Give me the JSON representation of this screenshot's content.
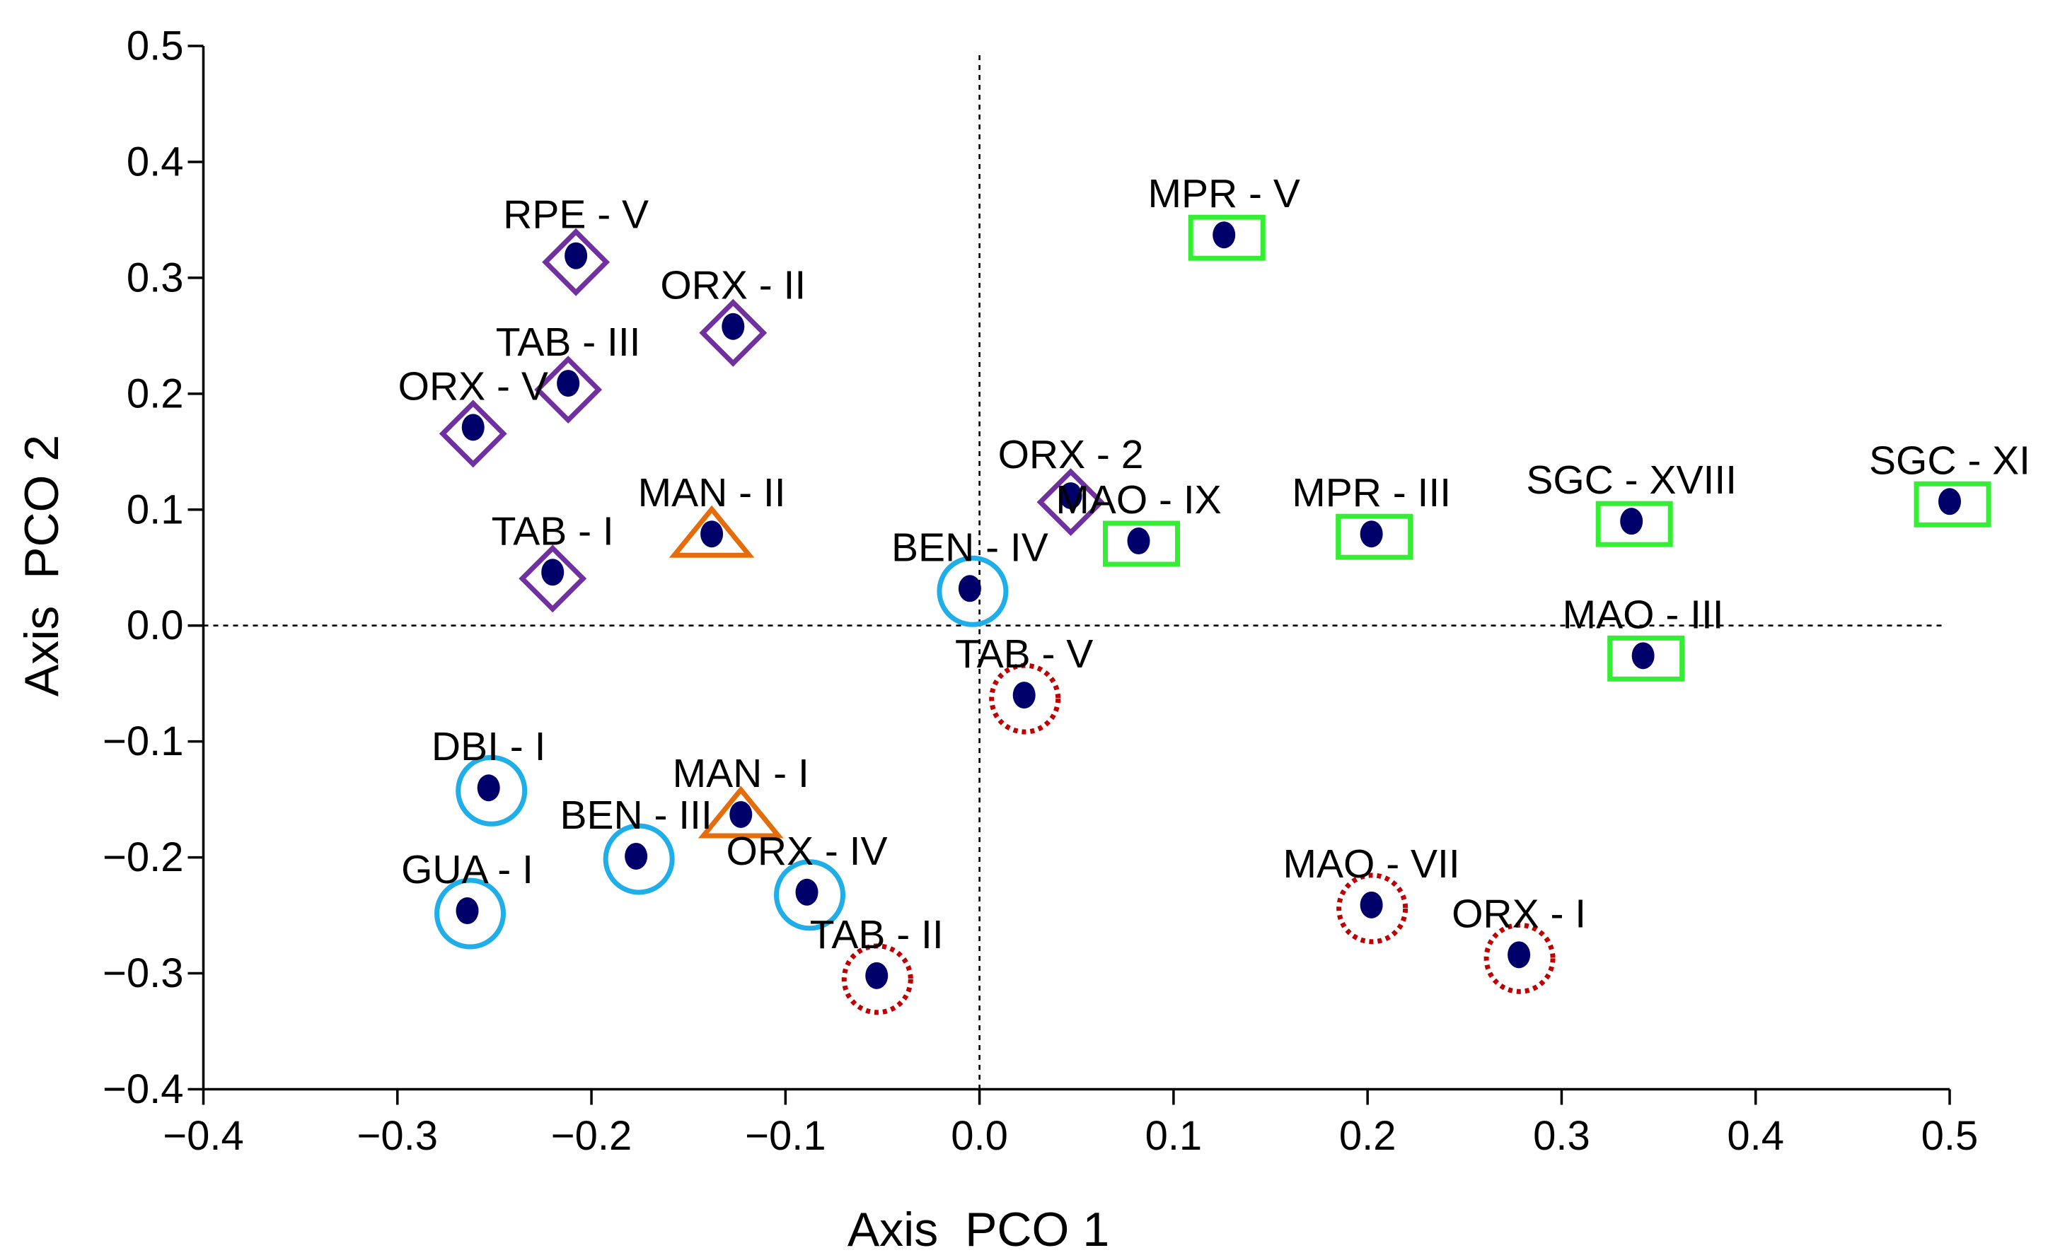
{
  "chart_data": {
    "type": "scatter",
    "xlabel": "Axis  PCO 1",
    "ylabel": "Axis  PCO 2",
    "xlim": [
      -0.4,
      0.5
    ],
    "ylim": [
      -0.4,
      0.5
    ],
    "grid": false,
    "xticks": [
      -0.4,
      -0.3,
      -0.2,
      -0.1,
      0.0,
      0.1,
      0.2,
      0.3,
      0.4,
      0.5
    ],
    "xtick_labels": [
      "−0.4",
      "−0.3",
      "−0.2",
      "−0.1",
      "0.0",
      "0.1",
      "0.2",
      "0.3",
      "0.4",
      "0.5"
    ],
    "yticks": [
      0.5,
      0.4,
      0.3,
      0.2,
      0.1,
      0.0,
      -0.1,
      -0.2,
      -0.3,
      -0.4
    ],
    "ytick_labels": [
      "0.5",
      "0.4",
      "0.3",
      "0.2",
      "0.1",
      "0.0",
      "−0.1",
      "−0.2",
      "−0.3",
      "−0.4"
    ],
    "reference_lines": {
      "x": 0,
      "y": 0
    },
    "point_color": "#00006B",
    "marker_styles": {
      "diamond": {
        "color": "#7030A0"
      },
      "triangle": {
        "color": "#E46C0A"
      },
      "circle": {
        "color": "#1FAEE8"
      },
      "square": {
        "color": "#33EE33"
      },
      "dotted-circle": {
        "color": "#C00000"
      }
    },
    "points": [
      {
        "label": "RPE - V",
        "x": -0.208,
        "y": 0.319,
        "marker": "diamond"
      },
      {
        "label": "ORX - II",
        "x": -0.127,
        "y": 0.258,
        "marker": "diamond"
      },
      {
        "label": "TAB - III",
        "x": -0.212,
        "y": 0.209,
        "marker": "diamond"
      },
      {
        "label": "ORX - V",
        "x": -0.261,
        "y": 0.171,
        "marker": "diamond"
      },
      {
        "label": "TAB - I",
        "x": -0.22,
        "y": 0.046,
        "marker": "diamond"
      },
      {
        "label": "ORX - 2",
        "x": 0.047,
        "y": 0.112,
        "marker": "diamond"
      },
      {
        "label": "MAN - II",
        "x": -0.138,
        "y": 0.079,
        "marker": "triangle"
      },
      {
        "label": "MAN - I",
        "x": -0.123,
        "y": -0.163,
        "marker": "triangle"
      },
      {
        "label": "BEN - IV",
        "x": -0.005,
        "y": 0.032,
        "marker": "circle"
      },
      {
        "label": "DBI - I",
        "x": -0.253,
        "y": -0.14,
        "marker": "circle"
      },
      {
        "label": "BEN - III",
        "x": -0.177,
        "y": -0.199,
        "marker": "circle"
      },
      {
        "label": "GUA - I",
        "x": -0.264,
        "y": -0.246,
        "marker": "circle"
      },
      {
        "label": "ORX - IV",
        "x": -0.089,
        "y": -0.23,
        "marker": "circle"
      },
      {
        "label": "MPR - V",
        "x": 0.126,
        "y": 0.337,
        "marker": "square"
      },
      {
        "label": "MAO - IX",
        "x": 0.082,
        "y": 0.073,
        "marker": "square"
      },
      {
        "label": "MPR - III",
        "x": 0.202,
        "y": 0.079,
        "marker": "square"
      },
      {
        "label": "SGC - XVIII",
        "x": 0.336,
        "y": 0.09,
        "marker": "square"
      },
      {
        "label": "SGC - XI",
        "x": 0.5,
        "y": 0.107,
        "marker": "square"
      },
      {
        "label": "MAO - III",
        "x": 0.342,
        "y": -0.026,
        "marker": "square"
      },
      {
        "label": "TAB - V",
        "x": 0.023,
        "y": -0.06,
        "marker": "dotted-circle"
      },
      {
        "label": "TAB - II",
        "x": -0.053,
        "y": -0.302,
        "marker": "dotted-circle"
      },
      {
        "label": "MAO - VII",
        "x": 0.202,
        "y": -0.241,
        "marker": "dotted-circle"
      },
      {
        "label": "ORX - I",
        "x": 0.278,
        "y": -0.284,
        "marker": "dotted-circle"
      }
    ]
  }
}
